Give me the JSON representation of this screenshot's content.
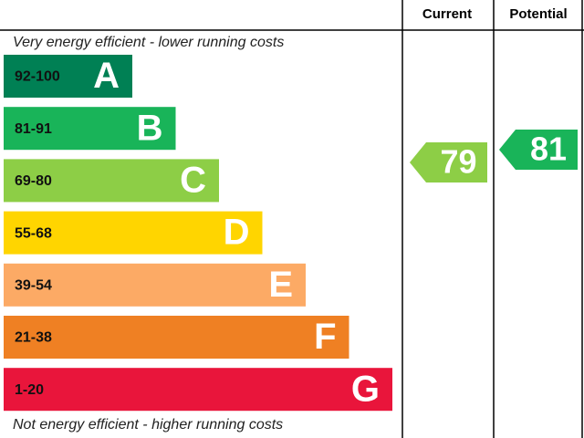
{
  "header": {
    "current": "Current",
    "potential": "Potential"
  },
  "top_note": "Very energy efficient - lower running costs",
  "bottom_note": "Not energy efficient - higher running costs",
  "bands": [
    {
      "range": "92-100",
      "letter": "A",
      "color": "#008054"
    },
    {
      "range": "81-91",
      "letter": "B",
      "color": "#19b459"
    },
    {
      "range": "69-80",
      "letter": "C",
      "color": "#8dce46"
    },
    {
      "range": "55-68",
      "letter": "D",
      "color": "#ffd500"
    },
    {
      "range": "39-54",
      "letter": "E",
      "color": "#fcaa65"
    },
    {
      "range": "21-38",
      "letter": "F",
      "color": "#ef8023"
    },
    {
      "range": "1-20",
      "letter": "G",
      "color": "#e9153b"
    }
  ],
  "current": {
    "value": 79,
    "color": "#8dce46"
  },
  "potential": {
    "value": 81,
    "color": "#19b459"
  }
}
